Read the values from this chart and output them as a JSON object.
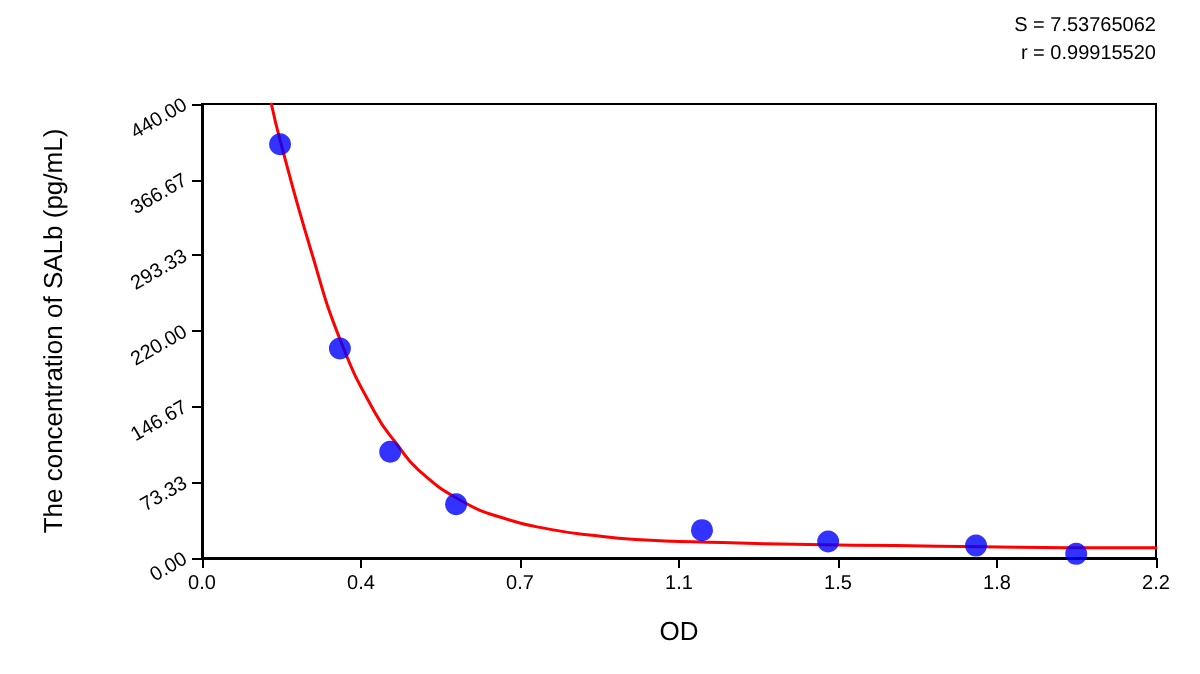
{
  "chart_data": {
    "type": "scatter",
    "xlabel": "OD",
    "ylabel": "The concentration of SALb (pg/mL)",
    "annotations": [
      "S = 7.53765062",
      "r = 0.99915520"
    ],
    "xlim": [
      0,
      2.2
    ],
    "xticks": [
      {
        "value": 0,
        "label": "0.0"
      },
      {
        "value": 0.3667,
        "label": "0.4"
      },
      {
        "value": 0.7333,
        "label": "0.7"
      },
      {
        "value": 1.1,
        "label": "1.1"
      },
      {
        "value": 1.4667,
        "label": "1.5"
      },
      {
        "value": 1.8333,
        "label": "1.8"
      },
      {
        "value": 2.2,
        "label": "2.2"
      }
    ],
    "ylim": [
      0,
      440
    ],
    "yticks": [
      {
        "value": 0,
        "label": "0.00"
      },
      {
        "value": 73.33,
        "label": "73.33"
      },
      {
        "value": 146.67,
        "label": "146.67"
      },
      {
        "value": 220,
        "label": "220.00"
      },
      {
        "value": 293.33,
        "label": "293.33"
      },
      {
        "value": 366.67,
        "label": "366.67"
      },
      {
        "value": 440,
        "label": "440.00"
      }
    ],
    "grid": false,
    "series": [
      {
        "type": "line",
        "color": "#ff0000",
        "marker": "none",
        "line_style": "solid",
        "x": [
          0.16,
          0.18,
          0.25,
          0.32,
          0.4,
          0.45,
          0.5,
          0.6,
          0.7,
          0.8,
          0.9,
          1.0,
          1.2,
          1.4,
          1.6,
          1.8,
          2.0,
          2.2
        ],
        "values": [
          440,
          405,
          300,
          210,
          140,
          110,
          85,
          55,
          38,
          28,
          22,
          18,
          15,
          13,
          12,
          11,
          10,
          10
        ]
      },
      {
        "color": "#0000ff",
        "marker": "circle",
        "x": [
          0.18,
          0.318,
          0.434,
          0.586,
          1.153,
          1.444,
          1.785,
          2.016
        ],
        "values": [
          401,
          203,
          103,
          52,
          27,
          16,
          12,
          4
        ]
      }
    ]
  }
}
